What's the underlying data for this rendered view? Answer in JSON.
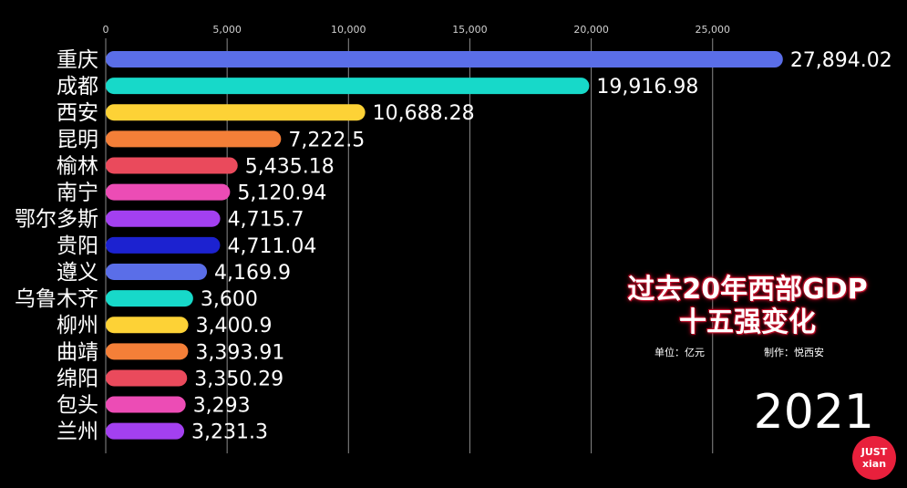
{
  "chart_data": {
    "type": "bar",
    "orientation": "horizontal",
    "categories": [
      "重庆",
      "成都",
      "西安",
      "昆明",
      "榆林",
      "南宁",
      "鄂尔多斯",
      "贵阳",
      "遵义",
      "乌鲁木齐",
      "柳州",
      "曲靖",
      "绵阳",
      "包头",
      "兰州"
    ],
    "values": [
      27894.02,
      19916.98,
      10688.28,
      7222.5,
      5435.18,
      5120.94,
      4715.7,
      4711.04,
      4169.9,
      3600,
      3400.9,
      3393.91,
      3350.29,
      3293,
      3231.3
    ],
    "value_labels": [
      "27,894.02",
      "19,916.98",
      "10,688.28",
      "7,222.5",
      "5,435.18",
      "5,120.94",
      "4,715.7",
      "4,711.04",
      "4,169.9",
      "3,600",
      "3,400.9",
      "3,393.91",
      "3,350.29",
      "3,293",
      "3,231.3"
    ],
    "colors": [
      "#5a6ee8",
      "#17d9c9",
      "#fdd236",
      "#f47f38",
      "#ea4a5c",
      "#ec4cb5",
      "#a340f0",
      "#1c22d0",
      "#5a6ee8",
      "#17d9c9",
      "#fdd236",
      "#f47f38",
      "#ea4a5c",
      "#ec4cb5",
      "#a340f0"
    ],
    "xticks": [
      0,
      5000,
      10000,
      15000,
      20000,
      25000
    ],
    "xtick_labels": [
      "0",
      "5,000",
      "10,000",
      "15,000",
      "20,000",
      "25,000"
    ],
    "xlim": [
      0,
      28000
    ],
    "grid": true,
    "title_lines": [
      "过去20年西部GDP",
      "十五强变化"
    ],
    "unit_label": "单位：亿元",
    "credit_label": "制作：悦西安",
    "year": "2021"
  },
  "logo": {
    "line1": "JUST",
    "line2": "xian"
  }
}
